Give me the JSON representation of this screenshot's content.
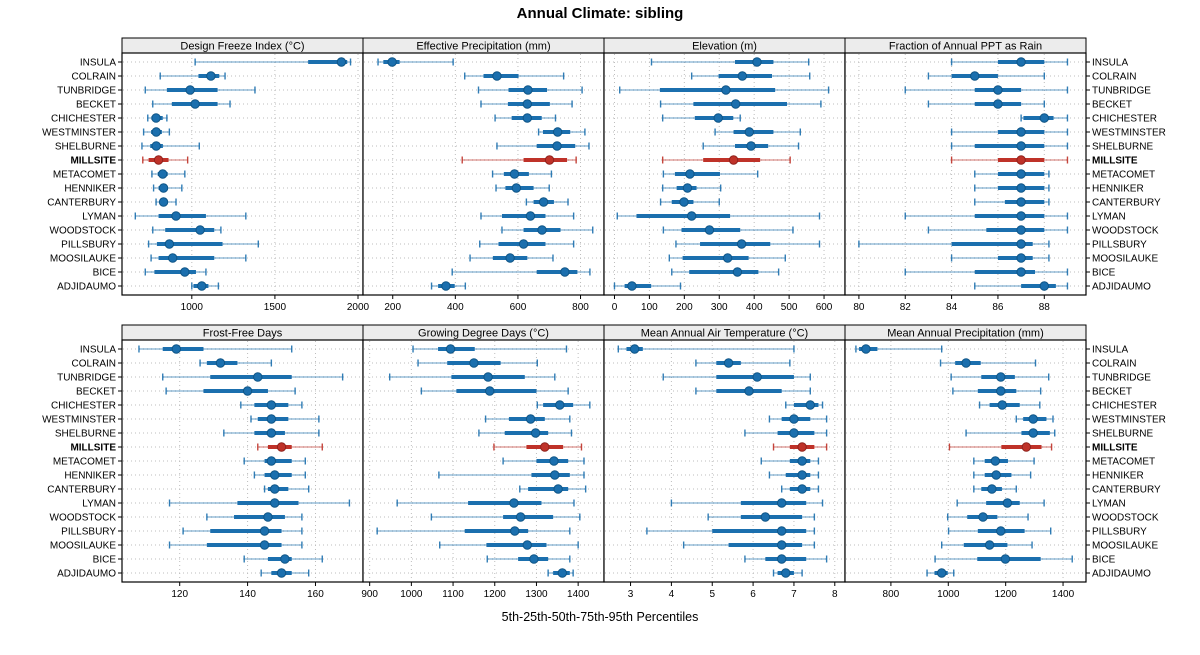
{
  "title": "Annual Climate: sibling",
  "caption": "5th-25th-50th-75th-95th Percentiles",
  "colors": {
    "series_blue": "#1b6fae",
    "series_blue_dark": "#0f5586",
    "highlight_red": "#bf3229",
    "highlight_red_dark": "#8f221c",
    "strip_bg": "#ececec",
    "panel_border": "#000000",
    "grid": "#bdbdbd",
    "tick_text": "#000000"
  },
  "sites": [
    "INSULA",
    "COLRAIN",
    "TUNBRIDGE",
    "BECKET",
    "CHICHESTER",
    "WESTMINSTER",
    "SHELBURNE",
    "MILLSITE",
    "METACOMET",
    "HENNIKER",
    "CANTERBURY",
    "LYMAN",
    "WOODSTOCK",
    "PILLSBURY",
    "MOOSILAUKE",
    "BICE",
    "ADJIDAUMO"
  ],
  "highlight_site": "MILLSITE",
  "highlight_index": 7,
  "chart_data": {
    "type": "trellis-dot-whisker",
    "percentiles": [
      "5th",
      "25th",
      "50th",
      "75th",
      "95th"
    ],
    "grid": true,
    "panels": [
      {
        "title": "Design Freeze Index (°C)",
        "row": 0,
        "col": 0,
        "xlim": [
          580,
          2030
        ],
        "ticks": [
          1000,
          1500,
          2000
        ],
        "series": [
          [
            1020,
            1700,
            1900,
            1935,
            1955
          ],
          [
            810,
            1040,
            1115,
            1165,
            1200
          ],
          [
            720,
            850,
            990,
            1155,
            1380
          ],
          [
            765,
            880,
            1020,
            1155,
            1230
          ],
          [
            735,
            757,
            785,
            825,
            850
          ],
          [
            710,
            755,
            786,
            820,
            865
          ],
          [
            700,
            750,
            786,
            826,
            1045
          ],
          [
            705,
            740,
            800,
            860,
            975
          ],
          [
            760,
            795,
            825,
            855,
            958
          ],
          [
            770,
            800,
            830,
            855,
            940
          ],
          [
            785,
            810,
            830,
            850,
            905
          ],
          [
            660,
            800,
            905,
            1085,
            1325
          ],
          [
            765,
            840,
            1050,
            1135,
            1175
          ],
          [
            740,
            790,
            865,
            1185,
            1400
          ],
          [
            755,
            800,
            885,
            1135,
            1325
          ],
          [
            720,
            775,
            958,
            1025,
            1085
          ],
          [
            1000,
            1010,
            1060,
            1100,
            1160
          ]
        ]
      },
      {
        "title": "Effective Precipitation (mm)",
        "row": 0,
        "col": 1,
        "xlim": [
          105,
          875
        ],
        "ticks": [
          200,
          400,
          600,
          800
        ],
        "series": [
          [
            153,
            170,
            198,
            222,
            393
          ],
          [
            430,
            490,
            533,
            602,
            746
          ],
          [
            474,
            570,
            632,
            693,
            805
          ],
          [
            482,
            568,
            630,
            702,
            773
          ],
          [
            527,
            580,
            630,
            676,
            720
          ],
          [
            666,
            680,
            727,
            767,
            814
          ],
          [
            533,
            660,
            725,
            783,
            827
          ],
          [
            422,
            618,
            701,
            757,
            786
          ],
          [
            519,
            555,
            589,
            635,
            707
          ],
          [
            530,
            560,
            595,
            650,
            700
          ],
          [
            627,
            650,
            682,
            715,
            760
          ],
          [
            482,
            549,
            640,
            688,
            778
          ],
          [
            549,
            618,
            677,
            736,
            839
          ],
          [
            478,
            538,
            618,
            688,
            778
          ],
          [
            447,
            520,
            575,
            630,
            712
          ],
          [
            390,
            660,
            750,
            790,
            830
          ],
          [
            324,
            345,
            370,
            398,
            432
          ]
        ]
      },
      {
        "title": "Elevation (m)",
        "row": 0,
        "col": 2,
        "xlim": [
          -30,
          660
        ],
        "ticks": [
          0,
          100,
          200,
          300,
          400,
          500,
          600
        ],
        "series": [
          [
            106,
            345,
            408,
            455,
            556
          ],
          [
            221,
            298,
            366,
            451,
            559
          ],
          [
            15,
            130,
            319,
            460,
            613
          ],
          [
            132,
            226,
            347,
            494,
            591
          ],
          [
            138,
            230,
            297,
            340,
            360
          ],
          [
            288,
            341,
            386,
            455,
            532
          ],
          [
            254,
            345,
            391,
            440,
            527
          ],
          [
            138,
            254,
            341,
            417,
            503
          ],
          [
            140,
            173,
            216,
            302,
            410
          ],
          [
            138,
            178,
            209,
            235,
            304
          ],
          [
            132,
            164,
            199,
            226,
            300
          ],
          [
            8,
            63,
            221,
            331,
            587
          ],
          [
            140,
            192,
            272,
            360,
            511
          ],
          [
            176,
            245,
            364,
            446,
            587
          ],
          [
            157,
            195,
            324,
            384,
            489
          ],
          [
            164,
            214,
            352,
            412,
            470
          ],
          [
            0,
            29,
            50,
            105,
            189
          ]
        ]
      },
      {
        "title": "Fraction of Annual PPT as Rain",
        "row": 0,
        "col": 3,
        "xlim": [
          79.4,
          89.8
        ],
        "ticks": [
          80,
          82,
          84,
          86,
          88
        ],
        "series": [
          [
            84,
            86,
            87,
            88,
            89
          ],
          [
            83,
            84,
            85,
            86,
            88
          ],
          [
            82,
            85,
            86,
            87,
            89
          ],
          [
            83,
            85,
            86,
            87,
            88
          ],
          [
            87,
            87.1,
            88,
            88.4,
            89
          ],
          [
            84,
            86,
            87,
            88,
            89
          ],
          [
            84,
            85,
            87,
            88,
            89
          ],
          [
            84,
            86,
            87,
            88,
            89
          ],
          [
            85,
            86,
            87,
            88,
            88.2
          ],
          [
            85,
            86,
            87,
            88,
            88.2
          ],
          [
            85,
            86.3,
            87,
            88,
            88.2
          ],
          [
            82,
            85,
            87,
            88,
            89
          ],
          [
            83,
            85.5,
            87,
            88,
            89
          ],
          [
            80,
            84,
            87,
            87.5,
            88.2
          ],
          [
            84,
            86,
            87,
            87.5,
            88.2
          ],
          [
            82,
            85,
            87,
            87.6,
            89
          ],
          [
            85,
            87,
            88,
            88.5,
            89
          ]
        ]
      },
      {
        "title": "Frost-Free Days",
        "row": 1,
        "col": 0,
        "xlim": [
          103,
          174
        ],
        "ticks": [
          120,
          140,
          160
        ],
        "series": [
          [
            108,
            115,
            119,
            127,
            153
          ],
          [
            126,
            128,
            132,
            137,
            147
          ],
          [
            115,
            129,
            143,
            153,
            168
          ],
          [
            116,
            127,
            140,
            146,
            154
          ],
          [
            138,
            142,
            147,
            152,
            156
          ],
          [
            141,
            143,
            147,
            152,
            161
          ],
          [
            133,
            142,
            147,
            151,
            161
          ],
          [
            143,
            146,
            150,
            153,
            162
          ],
          [
            139,
            145,
            147,
            153,
            157
          ],
          [
            142,
            145,
            148,
            153,
            157
          ],
          [
            145,
            146,
            148,
            152,
            158
          ],
          [
            117,
            137,
            148,
            155,
            170
          ],
          [
            128,
            136,
            146,
            151,
            156
          ],
          [
            121,
            129,
            145,
            150,
            156
          ],
          [
            117,
            128,
            145,
            150,
            156
          ],
          [
            139,
            146,
            151,
            153,
            162
          ],
          [
            144,
            147,
            150,
            153,
            158
          ]
        ]
      },
      {
        "title": "Growing Degree Days (°C)",
        "row": 1,
        "col": 1,
        "xlim": [
          884,
          1462
        ],
        "ticks": [
          900,
          1000,
          1100,
          1200,
          1300,
          1400
        ],
        "series": [
          [
            1004,
            1064,
            1094,
            1152,
            1372
          ],
          [
            1016,
            1086,
            1150,
            1214,
            1302
          ],
          [
            948,
            1096,
            1184,
            1272,
            1344
          ],
          [
            1024,
            1108,
            1188,
            1300,
            1376
          ],
          [
            1302,
            1316,
            1356,
            1388,
            1428
          ],
          [
            1178,
            1234,
            1286,
            1320,
            1380
          ],
          [
            1162,
            1224,
            1298,
            1328,
            1384
          ],
          [
            1198,
            1276,
            1320,
            1364,
            1408
          ],
          [
            1220,
            1300,
            1342,
            1376,
            1414
          ],
          [
            1066,
            1288,
            1344,
            1380,
            1414
          ],
          [
            1260,
            1280,
            1352,
            1376,
            1418
          ],
          [
            966,
            1136,
            1246,
            1312,
            1390
          ],
          [
            1048,
            1220,
            1262,
            1340,
            1404
          ],
          [
            918,
            1128,
            1248,
            1280,
            1380
          ],
          [
            1068,
            1180,
            1278,
            1324,
            1400
          ],
          [
            1182,
            1256,
            1294,
            1328,
            1380
          ],
          [
            1328,
            1340,
            1362,
            1380,
            1388
          ]
        ]
      },
      {
        "title": "Mean Annual Air Temperature (°C)",
        "row": 1,
        "col": 2,
        "xlim": [
          2.35,
          8.25
        ],
        "ticks": [
          3,
          4,
          5,
          6,
          7,
          8
        ],
        "series": [
          [
            2.7,
            2.9,
            3.1,
            3.3,
            7.0
          ],
          [
            4.6,
            5.1,
            5.4,
            5.7,
            6.9
          ],
          [
            3.8,
            5.1,
            6.1,
            7.0,
            7.4
          ],
          [
            4.6,
            5.1,
            5.9,
            6.7,
            7.4
          ],
          [
            6.8,
            7.0,
            7.4,
            7.6,
            7.7
          ],
          [
            6.4,
            6.7,
            7.0,
            7.4,
            7.8
          ],
          [
            5.8,
            6.6,
            7.0,
            7.5,
            7.8
          ],
          [
            6.5,
            6.9,
            7.2,
            7.5,
            7.8
          ],
          [
            6.2,
            6.9,
            7.2,
            7.4,
            7.6
          ],
          [
            6.4,
            6.8,
            7.2,
            7.4,
            7.6
          ],
          [
            6.7,
            6.9,
            7.2,
            7.4,
            7.6
          ],
          [
            4.0,
            5.7,
            6.7,
            7.3,
            7.7
          ],
          [
            4.9,
            5.7,
            6.3,
            7.2,
            7.5
          ],
          [
            3.4,
            5.0,
            6.7,
            7.3,
            7.5
          ],
          [
            4.3,
            5.4,
            6.7,
            7.2,
            7.5
          ],
          [
            5.8,
            6.3,
            6.7,
            7.3,
            7.8
          ],
          [
            6.5,
            6.6,
            6.8,
            7.0,
            7.2
          ]
        ]
      },
      {
        "title": "Mean Annual Precipitation (mm)",
        "row": 1,
        "col": 3,
        "xlim": [
          640,
          1480
        ],
        "ticks": [
          800,
          1000,
          1200,
          1400
        ],
        "series": [
          [
            678,
            689,
            713,
            753,
            977
          ],
          [
            973,
            1024,
            1062,
            1113,
            1304
          ],
          [
            1010,
            1115,
            1183,
            1232,
            1350
          ],
          [
            1016,
            1103,
            1183,
            1237,
            1322
          ],
          [
            1109,
            1144,
            1188,
            1249,
            1319
          ],
          [
            1237,
            1261,
            1296,
            1342,
            1365
          ],
          [
            1062,
            1255,
            1296,
            1354,
            1371
          ],
          [
            1004,
            1185,
            1272,
            1325,
            1360
          ],
          [
            1089,
            1127,
            1164,
            1208,
            1299
          ],
          [
            1089,
            1127,
            1167,
            1220,
            1287
          ],
          [
            1089,
            1115,
            1152,
            1187,
            1237
          ],
          [
            1031,
            1132,
            1206,
            1249,
            1334
          ],
          [
            998,
            1066,
            1121,
            1171,
            1278
          ],
          [
            1001,
            1103,
            1183,
            1266,
            1357
          ],
          [
            977,
            1054,
            1144,
            1206,
            1292
          ],
          [
            954,
            1101,
            1199,
            1322,
            1432
          ],
          [
            926,
            952,
            977,
            998,
            1019
          ]
        ]
      }
    ]
  }
}
